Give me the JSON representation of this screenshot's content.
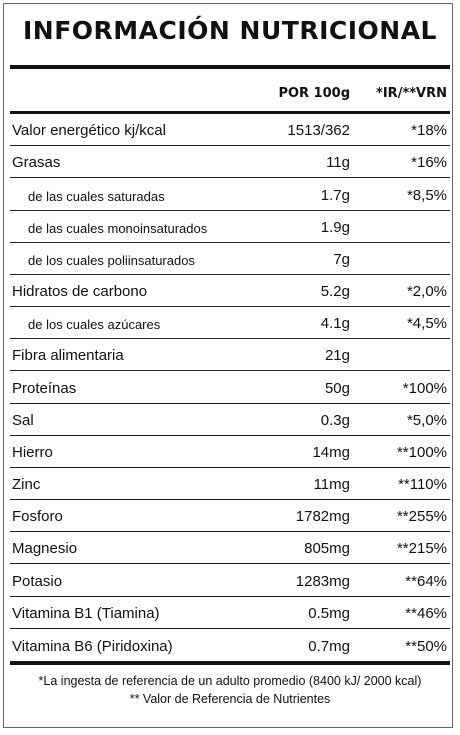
{
  "title": "INFORMACIÓN NUTRICIONAL",
  "header": {
    "amount": "POR 100g",
    "reference": "*IR/**VRN"
  },
  "nutrients": [
    {
      "label": "Valor energético kj/kcal",
      "amount": "1513/362",
      "reference": "*18%"
    },
    {
      "label": "Grasas",
      "amount": "11g",
      "reference": "*16%",
      "sub": [
        {
          "label": "de las cuales saturadas",
          "amount": "1.7g",
          "reference": "*8,5%"
        },
        {
          "label": "de las cuales monoinsaturados",
          "amount": "1.9g"
        },
        {
          "label": "de los cuales poliinsaturados",
          "amount": "7g"
        }
      ]
    },
    {
      "label": "Hidratos de carbono",
      "amount": "5.2g",
      "reference": "*2,0%",
      "sub": [
        {
          "label": "de los cuales azúcares",
          "amount": "4.1g",
          "reference": "*4,5%"
        }
      ]
    },
    {
      "label": "Fibra alimentaria",
      "amount": "21g"
    },
    {
      "label": "Proteínas",
      "amount": "50g",
      "reference": "*100%"
    },
    {
      "label": "Sal",
      "amount": "0.3g",
      "reference": "*5,0%"
    },
    {
      "label": "Hierro",
      "amount": "14mg",
      "reference": "**100%"
    },
    {
      "label": "Zinc",
      "amount": "11mg",
      "reference": "**110%"
    },
    {
      "label": "Fosforo",
      "amount": "1782mg",
      "reference": "**255%"
    },
    {
      "label": "Magnesio",
      "amount": "805mg",
      "reference": "**215%"
    },
    {
      "label": "Potasio",
      "amount": "1283mg",
      "reference": "**64%"
    },
    {
      "label": "Vitamina B1 (Tiamina)",
      "amount": "0.5mg",
      "reference": "**46%"
    },
    {
      "label": "Vitamina B6 (Piridoxina)",
      "amount": "0.7mg",
      "reference": "**50%"
    }
  ],
  "footnotes": [
    "*La ingesta de referencia de un adulto promedio (8400 kJ/ 2000 kcal)",
    "** Valor de Referencia de Nutrientes"
  ]
}
